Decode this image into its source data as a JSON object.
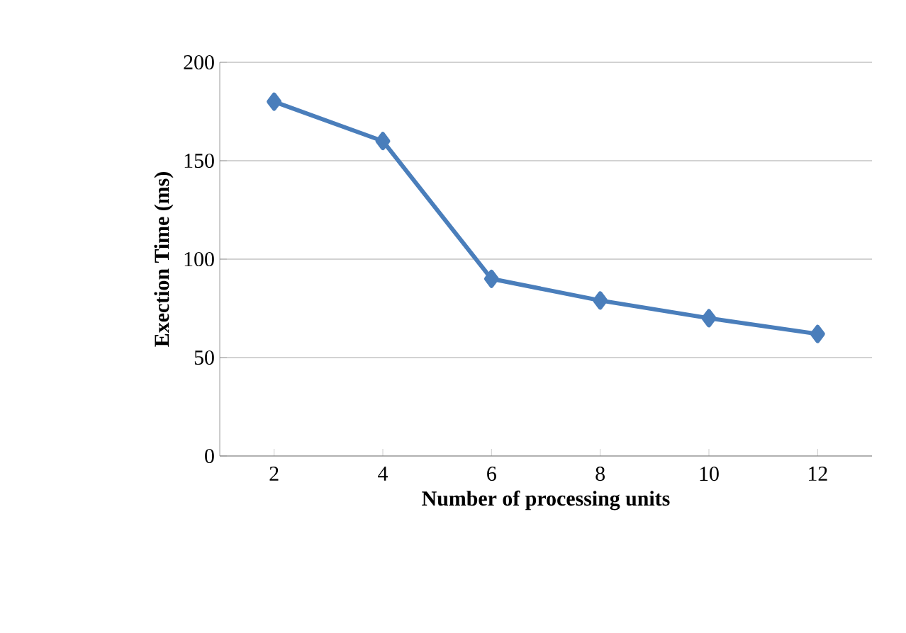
{
  "chart_data": {
    "type": "line",
    "xlabel": "Number of processing units",
    "ylabel": "Exection Time (ms)",
    "categories": [
      "2",
      "4",
      "6",
      "8",
      "10",
      "12"
    ],
    "series": [
      {
        "color": "#4a7ebb",
        "values": [
          180,
          160,
          90,
          79,
          70,
          62
        ]
      }
    ],
    "ylim": [
      0,
      200
    ],
    "yticks": [
      0,
      50,
      100,
      150,
      200
    ],
    "grid": "y",
    "marker": "diamond",
    "line_style": "solid"
  }
}
